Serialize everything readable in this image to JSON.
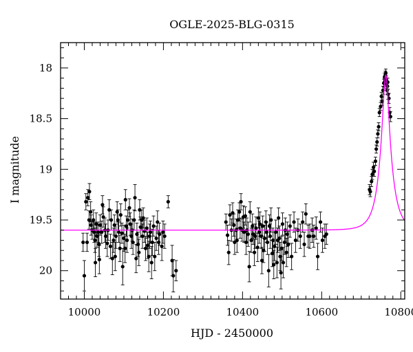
{
  "chart_data": {
    "type": "scatter",
    "title": "OGLE-2025-BLG-0315",
    "xlabel": "HJD - 2450000",
    "ylabel": "I magnitude",
    "xlim": [
      9940,
      10810
    ],
    "ylim": [
      20.28,
      17.75
    ],
    "y_inverted": true,
    "x_ticks": [
      10000,
      10200,
      10400,
      10600,
      10800
    ],
    "y_ticks": [
      18,
      18.5,
      19,
      19.5,
      20
    ],
    "x_tick_labels": [
      "10000",
      "10200",
      "10400",
      "10600",
      "10800"
    ],
    "y_tick_labels": [
      "18",
      "18.5",
      "19",
      "19.5",
      "20"
    ],
    "colors": {
      "data": "#000000",
      "model": "#ff00ff"
    },
    "grid": false,
    "series": [
      {
        "kind": "points_with_errorbars",
        "points": [
          [
            9997,
            19.72,
            0.09
          ],
          [
            10000,
            20.05,
            0.15
          ],
          [
            10004,
            19.32,
            0.08
          ],
          [
            10007,
            19.72,
            0.09
          ],
          [
            10009,
            19.28,
            0.08
          ],
          [
            10012,
            19.5,
            0.09
          ],
          [
            10013,
            19.22,
            0.08
          ],
          [
            10016,
            19.42,
            0.1
          ],
          [
            10017,
            19.55,
            0.1
          ],
          [
            10020,
            19.6,
            0.09
          ],
          [
            10023,
            19.5,
            0.1
          ],
          [
            10025,
            19.62,
            0.1
          ],
          [
            10027,
            19.7,
            0.12
          ],
          [
            10028,
            19.92,
            0.14
          ],
          [
            10030,
            19.54,
            0.11
          ],
          [
            10032,
            19.66,
            0.11
          ],
          [
            10035,
            19.62,
            0.1
          ],
          [
            10037,
            19.74,
            0.12
          ],
          [
            10038,
            19.89,
            0.14
          ],
          [
            10040,
            19.55,
            0.1
          ],
          [
            10044,
            19.62,
            0.11
          ],
          [
            10046,
            19.35,
            0.09
          ],
          [
            10048,
            19.47,
            0.1
          ],
          [
            10052,
            19.6,
            0.12
          ],
          [
            10054,
            19.66,
            0.12
          ],
          [
            10058,
            19.73,
            0.13
          ],
          [
            10060,
            19.6,
            0.1
          ],
          [
            10063,
            19.4,
            0.1
          ],
          [
            10066,
            19.76,
            0.12
          ],
          [
            10068,
            19.5,
            0.1
          ],
          [
            10071,
            19.88,
            0.16
          ],
          [
            10074,
            19.7,
            0.12
          ],
          [
            10076,
            19.55,
            0.1
          ],
          [
            10078,
            19.86,
            0.14
          ],
          [
            10080,
            19.66,
            0.12
          ],
          [
            10083,
            19.42,
            0.1
          ],
          [
            10085,
            19.5,
            0.1
          ],
          [
            10087,
            19.62,
            0.1
          ],
          [
            10090,
            19.78,
            0.13
          ],
          [
            10092,
            19.45,
            0.11
          ],
          [
            10095,
            19.63,
            0.1
          ],
          [
            10097,
            19.96,
            0.18
          ],
          [
            10100,
            19.68,
            0.13
          ],
          [
            10103,
            19.78,
            0.14
          ],
          [
            10104,
            19.3,
            0.1
          ],
          [
            10106,
            19.56,
            0.1
          ],
          [
            10108,
            19.7,
            0.12
          ],
          [
            10110,
            19.5,
            0.1
          ],
          [
            10114,
            19.38,
            0.09
          ],
          [
            10116,
            19.54,
            0.11
          ],
          [
            10119,
            19.66,
            0.12
          ],
          [
            10121,
            19.6,
            0.11
          ],
          [
            10123,
            19.72,
            0.12
          ],
          [
            10126,
            19.5,
            0.1
          ],
          [
            10128,
            19.28,
            0.13
          ],
          [
            10131,
            19.88,
            0.14
          ],
          [
            10133,
            19.64,
            0.11
          ],
          [
            10136,
            19.74,
            0.12
          ],
          [
            10138,
            19.82,
            0.13
          ],
          [
            10140,
            19.4,
            0.1
          ],
          [
            10142,
            19.57,
            0.1
          ],
          [
            10145,
            19.5,
            0.1
          ],
          [
            10147,
            19.66,
            0.12
          ],
          [
            10149,
            19.48,
            0.1
          ],
          [
            10152,
            19.61,
            0.11
          ],
          [
            10155,
            19.78,
            0.12
          ],
          [
            10158,
            19.58,
            0.1
          ],
          [
            10160,
            19.75,
            0.13
          ],
          [
            10163,
            19.86,
            0.15
          ],
          [
            10165,
            19.66,
            0.12
          ],
          [
            10167,
            19.62,
            0.11
          ],
          [
            10170,
            19.92,
            0.16
          ],
          [
            10172,
            19.72,
            0.13
          ],
          [
            10175,
            19.56,
            0.1
          ],
          [
            10178,
            19.86,
            0.14
          ],
          [
            10182,
            19.68,
            0.12
          ],
          [
            10185,
            19.52,
            0.11
          ],
          [
            10188,
            19.72,
            0.12
          ],
          [
            10190,
            19.64,
            0.11
          ],
          [
            10196,
            19.76,
            0.14
          ],
          [
            10199,
            19.62,
            0.11
          ],
          [
            10203,
            19.66,
            0.12
          ],
          [
            10212,
            19.32,
            0.06
          ],
          [
            10222,
            19.9,
            0.15
          ],
          [
            10225,
            20.05,
            0.16
          ],
          [
            10232,
            20.0,
            0.1
          ],
          [
            10358,
            19.52,
            0.08
          ],
          [
            10362,
            19.65,
            0.1
          ],
          [
            10365,
            19.82,
            0.12
          ],
          [
            10368,
            19.45,
            0.1
          ],
          [
            10372,
            19.6,
            0.11
          ],
          [
            10375,
            19.43,
            0.1
          ],
          [
            10378,
            19.55,
            0.11
          ],
          [
            10380,
            19.72,
            0.12
          ],
          [
            10384,
            19.6,
            0.11
          ],
          [
            10386,
            19.7,
            0.12
          ],
          [
            10388,
            19.5,
            0.1
          ],
          [
            10392,
            19.42,
            0.09
          ],
          [
            10394,
            19.58,
            0.1
          ],
          [
            10396,
            19.32,
            0.08
          ],
          [
            10399,
            19.6,
            0.11
          ],
          [
            10402,
            19.47,
            0.11
          ],
          [
            10404,
            19.62,
            0.1
          ],
          [
            10407,
            19.46,
            0.09
          ],
          [
            10409,
            19.72,
            0.12
          ],
          [
            10411,
            19.6,
            0.12
          ],
          [
            10414,
            19.64,
            0.12
          ],
          [
            10417,
            19.96,
            0.15
          ],
          [
            10419,
            19.42,
            0.1
          ],
          [
            10422,
            19.7,
            0.12
          ],
          [
            10425,
            19.56,
            0.12
          ],
          [
            10427,
            19.64,
            0.1
          ],
          [
            10430,
            19.82,
            0.13
          ],
          [
            10432,
            19.66,
            0.12
          ],
          [
            10434,
            19.58,
            0.11
          ],
          [
            10438,
            19.77,
            0.14
          ],
          [
            10440,
            19.48,
            0.1
          ],
          [
            10442,
            19.62,
            0.11
          ],
          [
            10444,
            19.54,
            0.12
          ],
          [
            10447,
            19.66,
            0.12
          ],
          [
            10449,
            19.9,
            0.13
          ],
          [
            10451,
            19.56,
            0.1
          ],
          [
            10453,
            19.8,
            0.12
          ],
          [
            10456,
            19.68,
            0.13
          ],
          [
            10459,
            19.52,
            0.11
          ],
          [
            10461,
            19.62,
            0.1
          ],
          [
            10463,
            19.72,
            0.12
          ],
          [
            10466,
            20.0,
            0.16
          ],
          [
            10468,
            19.56,
            0.11
          ],
          [
            10470,
            19.66,
            0.12
          ],
          [
            10472,
            19.5,
            0.12
          ],
          [
            10475,
            19.83,
            0.13
          ],
          [
            10477,
            19.7,
            0.12
          ],
          [
            10479,
            19.94,
            0.14
          ],
          [
            10481,
            19.76,
            0.14
          ],
          [
            10484,
            19.62,
            0.12
          ],
          [
            10487,
            19.92,
            0.15
          ],
          [
            10489,
            19.7,
            0.12
          ],
          [
            10491,
            19.48,
            0.1
          ],
          [
            10493,
            19.68,
            0.12
          ],
          [
            10495,
            19.86,
            0.14
          ],
          [
            10497,
            20.02,
            0.16
          ],
          [
            10499,
            19.78,
            0.12
          ],
          [
            10501,
            19.54,
            0.11
          ],
          [
            10503,
            19.92,
            0.15
          ],
          [
            10506,
            19.72,
            0.12
          ],
          [
            10508,
            19.6,
            0.12
          ],
          [
            10511,
            19.82,
            0.14
          ],
          [
            10513,
            19.64,
            0.12
          ],
          [
            10516,
            19.74,
            0.13
          ],
          [
            10520,
            19.56,
            0.11
          ],
          [
            10524,
            19.86,
            0.13
          ],
          [
            10530,
            19.52,
            0.1
          ],
          [
            10534,
            19.7,
            0.12
          ],
          [
            10540,
            19.6,
            0.11
          ],
          [
            10546,
            19.66,
            0.12
          ],
          [
            10552,
            19.52,
            0.1
          ],
          [
            10556,
            19.74,
            0.12
          ],
          [
            10560,
            19.44,
            0.1
          ],
          [
            10566,
            19.66,
            0.11
          ],
          [
            10570,
            19.66,
            0.12
          ],
          [
            10576,
            19.6,
            0.12
          ],
          [
            10580,
            19.66,
            0.11
          ],
          [
            10586,
            19.58,
            0.11
          ],
          [
            10590,
            19.86,
            0.13
          ],
          [
            10597,
            19.52,
            0.1
          ],
          [
            10602,
            19.7,
            0.12
          ],
          [
            10608,
            19.66,
            0.12
          ],
          [
            10612,
            19.64,
            0.1
          ],
          [
            10721,
            19.2,
            0.05
          ],
          [
            10723,
            19.22,
            0.05
          ],
          [
            10726,
            19.12,
            0.05
          ],
          [
            10728,
            19.05,
            0.05
          ],
          [
            10731,
            18.98,
            0.05
          ],
          [
            10733,
            19.02,
            0.05
          ],
          [
            10736,
            18.92,
            0.04
          ],
          [
            10738,
            18.8,
            0.04
          ],
          [
            10740,
            18.73,
            0.04
          ],
          [
            10742,
            18.65,
            0.04
          ],
          [
            10744,
            18.58,
            0.04
          ],
          [
            10746,
            18.44,
            0.04
          ],
          [
            10749,
            18.38,
            0.04
          ],
          [
            10751,
            18.28,
            0.04
          ],
          [
            10753,
            18.33,
            0.04
          ],
          [
            10755,
            18.22,
            0.04
          ],
          [
            10757,
            18.15,
            0.04
          ],
          [
            10759,
            18.09,
            0.04
          ],
          [
            10760,
            18.11,
            0.04
          ],
          [
            10761,
            18.07,
            0.04
          ],
          [
            10762,
            18.05,
            0.04
          ],
          [
            10763,
            18.12,
            0.04
          ],
          [
            10764,
            18.16,
            0.04
          ],
          [
            10765,
            18.22,
            0.04
          ],
          [
            10766,
            18.18,
            0.04
          ],
          [
            10767,
            18.14,
            0.04
          ],
          [
            10768,
            18.26,
            0.05
          ],
          [
            10770,
            18.3,
            0.05
          ],
          [
            10772,
            18.44,
            0.05
          ],
          [
            10774,
            18.48,
            0.05
          ]
        ]
      },
      {
        "kind": "model_curve",
        "baseline_mag": 19.6,
        "peak_mag": 18.07,
        "t0": 10762,
        "tE": 28
      }
    ]
  }
}
